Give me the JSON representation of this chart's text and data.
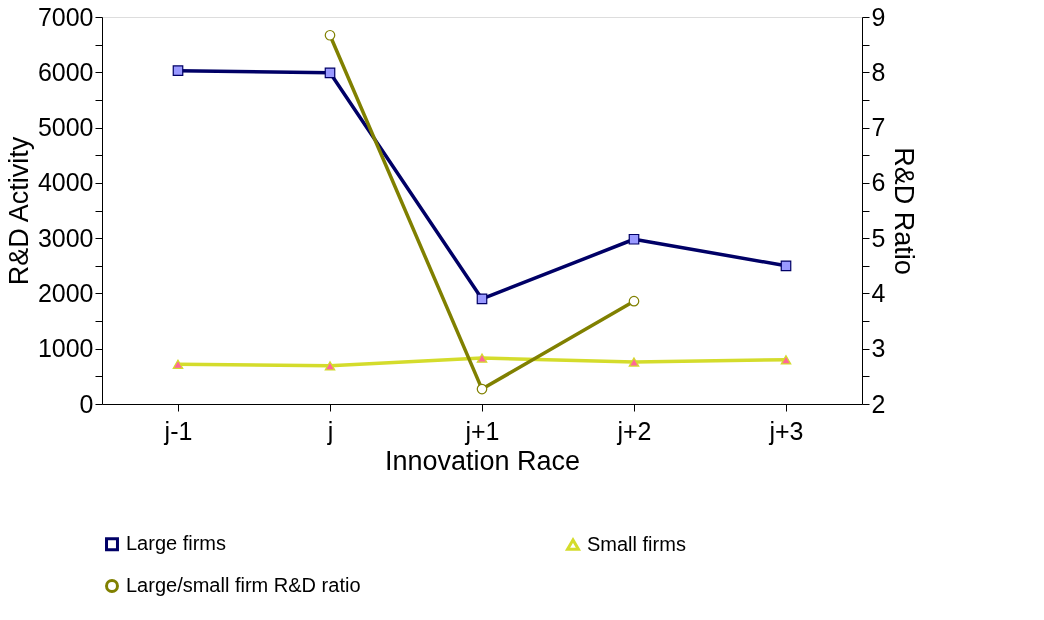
{
  "chart_data": {
    "type": "line",
    "xlabel": "Innovation Race",
    "ylabel": "R&D Activity",
    "y2label": "R&D Ratio",
    "categories": [
      "j-1",
      "j",
      "j+1",
      "j+2",
      "j+3"
    ],
    "series": [
      {
        "name": "Large firms",
        "color": "#000066",
        "marker": "square",
        "values": [
          6030,
          5990,
          1900,
          2980,
          2500
        ]
      },
      {
        "name": "Small firms",
        "color": "#d4dc2c",
        "marker": "triangle",
        "values": [
          720,
          690,
          830,
          760,
          800
        ]
      },
      {
        "name": "Large/small firm R&D ratio",
        "color": "#808000",
        "marker": "circle",
        "axis": "y2",
        "values": [
          null,
          8.67,
          2.27,
          3.86,
          null
        ]
      }
    ],
    "ylim": [
      0,
      7000
    ],
    "yticks": [
      0,
      {
        "value": 500,
        "label": null
      },
      1000,
      {
        "value": 1500,
        "label": null
      },
      2000,
      {
        "value": 2500,
        "label": null
      },
      3000,
      {
        "value": 3500,
        "label": null
      },
      4000,
      {
        "value": 4500,
        "label": null
      },
      5000,
      {
        "value": 5500,
        "label": null
      },
      6000,
      {
        "value": 6500,
        "label": null
      },
      7000
    ],
    "y2lim": [
      2,
      9
    ],
    "y2ticks": [
      2,
      {
        "value": 2.5,
        "label": null
      },
      3,
      {
        "value": 3.5,
        "label": null
      },
      4,
      {
        "value": 4.5,
        "label": null
      },
      5,
      {
        "value": 5.5,
        "label": null
      },
      6,
      {
        "value": 6.5,
        "label": null
      },
      7,
      {
        "value": 7.5,
        "label": null
      },
      8,
      {
        "value": 8.5,
        "label": null
      },
      9
    ],
    "legend": "bottom",
    "grid": false,
    "line_style": "solid"
  }
}
